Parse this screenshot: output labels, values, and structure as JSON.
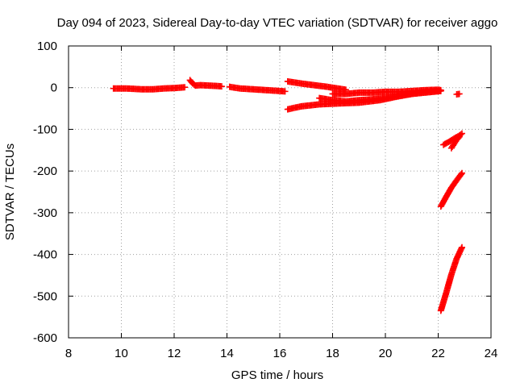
{
  "chart_data": {
    "type": "scatter",
    "title": "Day 094 of 2023, Sidereal Day-to-day VTEC variation (SDTVAR) for receiver aggo",
    "xlabel": "GPS time / hours",
    "ylabel": "SDTVAR / TECUs",
    "xlim": [
      8,
      24
    ],
    "ylim": [
      -600,
      100
    ],
    "x_ticks": [
      8,
      10,
      12,
      14,
      16,
      18,
      20,
      22,
      24
    ],
    "y_ticks": [
      100,
      0,
      -100,
      -200,
      -300,
      -400,
      -500,
      -600
    ],
    "grid": true,
    "marker": "plus",
    "color": "#ff0000",
    "series": [
      {
        "name": "SDTVAR",
        "segments": [
          {
            "x": [
              9.7,
              10.2,
              10.8,
              11.2,
              11.6,
              12.0,
              12.4
            ],
            "y": [
              -2,
              -2,
              -4,
              -4,
              -2,
              -1,
              1
            ]
          },
          {
            "x": [
              12.6,
              12.7,
              12.8,
              13.0,
              13.3,
              13.6,
              13.8
            ],
            "y": [
              18,
              10,
              5,
              6,
              5,
              4,
              3
            ]
          },
          {
            "x": [
              14.1,
              14.5,
              15.0,
              15.5,
              16.0,
              16.2
            ],
            "y": [
              2,
              -2,
              -4,
              -6,
              -8,
              -9
            ]
          },
          {
            "x": [
              16.3,
              16.8,
              17.3,
              17.8,
              18.2,
              18.5
            ],
            "y": [
              15,
              10,
              6,
              2,
              -2,
              -5
            ]
          },
          {
            "x": [
              16.3,
              16.8,
              17.5,
              18.2,
              19.0,
              19.8,
              20.4,
              21.0,
              21.8,
              22.1
            ],
            "y": [
              -52,
              -45,
              -40,
              -38,
              -36,
              -30,
              -22,
              -15,
              -10,
              -8
            ]
          },
          {
            "x": [
              17.5,
              18.0,
              18.5,
              19.0,
              19.5,
              20.0,
              20.5,
              21.0,
              21.5,
              22.0
            ],
            "y": [
              -25,
              -30,
              -33,
              -30,
              -28,
              -25,
              -20,
              -15,
              -10,
              -8
            ]
          },
          {
            "x": [
              18.0,
              18.5,
              19.0,
              19.5,
              20.0,
              20.5,
              21.0,
              21.5,
              22.0,
              22.1
            ],
            "y": [
              -15,
              -15,
              -12,
              -12,
              -10,
              -10,
              -8,
              -6,
              -5,
              -6
            ]
          },
          {
            "x": [
              22.7,
              22.8
            ],
            "y": [
              -16,
              -15
            ]
          },
          {
            "x": [
              22.2,
              22.4,
              22.6,
              22.8,
              22.9
            ],
            "y": [
              -137,
              -130,
              -122,
              -115,
              -110
            ]
          },
          {
            "x": [
              22.5,
              22.6,
              22.7,
              22.8
            ],
            "y": [
              -145,
              -135,
              -125,
              -118
            ]
          },
          {
            "x": [
              22.1,
              22.3,
              22.5,
              22.7,
              22.9
            ],
            "y": [
              -285,
              -262,
              -240,
              -222,
              -205
            ]
          },
          {
            "x": [
              22.1,
              22.3,
              22.5,
              22.7,
              22.9
            ],
            "y": [
              -535,
              -493,
              -448,
              -410,
              -383
            ]
          }
        ]
      }
    ]
  }
}
